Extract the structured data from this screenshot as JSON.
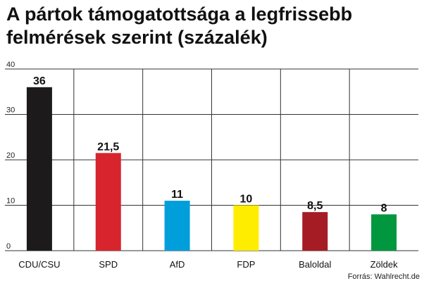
{
  "title": "A pártok támogatottsága a legfrissebb felmérések szerint (százalék)",
  "source": "Forrás: Wahlrecht.de",
  "chart_data": {
    "type": "bar",
    "title": "A pártok támogatottsága a legfrissebb felmérések szerint (százalék)",
    "categories": [
      "CDU/CSU",
      "SPD",
      "AfD",
      "FDP",
      "Baloldal",
      "Zöldek"
    ],
    "values": [
      36,
      21.5,
      11,
      10,
      8.5,
      8
    ],
    "value_labels": [
      "36",
      "21,5",
      "11",
      "10",
      "8,5",
      "8"
    ],
    "colors": [
      "#1c1a1b",
      "#d8242c",
      "#009fdb",
      "#ffed00",
      "#a51c24",
      "#00973f"
    ],
    "yticks": [
      0,
      10,
      20,
      30,
      40
    ],
    "ylim": [
      0,
      40
    ],
    "xlabel": "",
    "ylabel": "",
    "grid": true
  }
}
